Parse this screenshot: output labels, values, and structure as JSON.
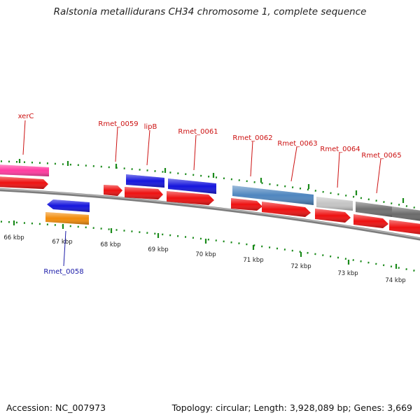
{
  "title": "Ralstonia metallidurans CH34 chromosome 1, complete sequence",
  "footer": {
    "accession": "Accession: NC_007973",
    "summary": "Topology: circular; Length: 3,928,089 bp; Genes: 3,669"
  },
  "colors": {
    "backbone": "#888888",
    "ticks": "#1a8a1a",
    "label_feature": "#cc1111",
    "label_reverse": "#1a1aa8",
    "cds": "#ee1111",
    "gene_blue": "#1515dd",
    "gene_orange": "#f28c0a",
    "gene_pink": "#ff3aa0",
    "gene_steel": "#4f86bf",
    "gene_lightgray": "#c4c4c4",
    "gene_darkgray": "#707070"
  },
  "scale_labels": [
    "66 kbp",
    "67 kbp",
    "68 kbp",
    "69 kbp",
    "70 kbp",
    "71 kbp",
    "72 kbp",
    "73 kbp",
    "74 kbp"
  ],
  "feature_labels": [
    "xerC",
    "Rmet_0059",
    "lipB",
    "Rmet_0061",
    "Rmet_0062",
    "Rmet_0063",
    "Rmet_0064",
    "Rmet_0065"
  ],
  "reverse_labels": [
    "Rmet_0058"
  ],
  "icons": {
    "arrow_right": "right-pointing gene arrow",
    "arrow_left": "left-pointing gene arrow"
  }
}
